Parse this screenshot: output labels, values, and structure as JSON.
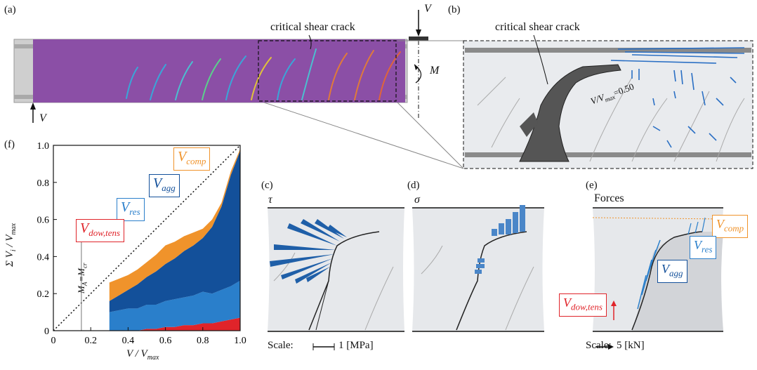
{
  "panel_labels": {
    "a": "(a)",
    "b": "(b)",
    "c": "(c)",
    "d": "(d)",
    "e": "(e)",
    "f": "(f)"
  },
  "panel_a": {
    "crack_label": "critical shear crack",
    "load_top": "V",
    "load_bottom": "V",
    "moment": "M"
  },
  "panel_b": {
    "crack_label": "critical shear crack",
    "ratio_label": "V/V",
    "ratio_sub": "max",
    "ratio_value": "=0.50"
  },
  "panel_c": {
    "title": "τ",
    "scale_label": "Scale:",
    "scale_value": "1 [MPa]"
  },
  "panel_d": {
    "title": "σ"
  },
  "panel_e": {
    "title": "Forces",
    "scale_label": "Scale:",
    "scale_value": "5 [kN]",
    "labels": {
      "comp": {
        "main": "V",
        "sub": "comp",
        "color": "#f0932b"
      },
      "res": {
        "main": "V",
        "sub": "res",
        "color": "#2a7fcb"
      },
      "agg": {
        "main": "V",
        "sub": "agg",
        "color": "#13509a"
      },
      "dow": {
        "main": "V",
        "sub": "dow,tens",
        "color": "#e0242a"
      }
    }
  },
  "colors": {
    "beam_fill": "#8b4fa6",
    "vdow": "#e0242a",
    "vres": "#2a7fcb",
    "vagg": "#13509a",
    "vcomp": "#f0932b",
    "bar_blue": "#1f5fa8"
  },
  "chart_data": {
    "type": "area",
    "xlabel": "V / V",
    "xlabel_sub": "max",
    "ylabel": "Σ V",
    "ylabel_sub_i": "i",
    "ylabel_tail": " / V",
    "ylabel_sub_max": "max",
    "xlim": [
      0,
      1
    ],
    "ylim": [
      0,
      1
    ],
    "x_ticks": [
      "0",
      "0.2",
      "0.4",
      "0.6",
      "0.8",
      "1.0"
    ],
    "y_ticks": [
      "0",
      "0.2",
      "0.4",
      "0.6",
      "0.8",
      "1.0"
    ],
    "annotation": "M",
    "annotation_sub": "A",
    "annotation_eq": "=M",
    "annotation_sub2": "cr",
    "annotation_x": 0.15,
    "x": [
      0.3,
      0.35,
      0.4,
      0.45,
      0.5,
      0.55,
      0.6,
      0.65,
      0.7,
      0.75,
      0.8,
      0.85,
      0.9,
      0.95,
      1.0
    ],
    "series": [
      {
        "name": "V",
        "sub": "dow,tens",
        "color": "#e0242a",
        "values": [
          0.0,
          0.0,
          0.0,
          0.0,
          0.01,
          0.01,
          0.02,
          0.02,
          0.03,
          0.03,
          0.04,
          0.04,
          0.05,
          0.06,
          0.07
        ]
      },
      {
        "name": "V",
        "sub": "res",
        "color": "#2a7fcb",
        "values": [
          0.1,
          0.11,
          0.12,
          0.12,
          0.13,
          0.13,
          0.14,
          0.15,
          0.15,
          0.16,
          0.17,
          0.16,
          0.17,
          0.18,
          0.2
        ]
      },
      {
        "name": "V",
        "sub": "agg",
        "color": "#13509a",
        "values": [
          0.06,
          0.08,
          0.1,
          0.13,
          0.15,
          0.18,
          0.2,
          0.22,
          0.25,
          0.27,
          0.29,
          0.36,
          0.45,
          0.6,
          0.7
        ]
      },
      {
        "name": "V",
        "sub": "comp",
        "color": "#f0932b",
        "values": [
          0.1,
          0.09,
          0.08,
          0.08,
          0.08,
          0.09,
          0.1,
          0.09,
          0.08,
          0.07,
          0.05,
          0.04,
          0.02,
          0.02,
          0.01
        ]
      }
    ],
    "dotted_line": [
      [
        0,
        0
      ],
      [
        1,
        1
      ]
    ]
  }
}
